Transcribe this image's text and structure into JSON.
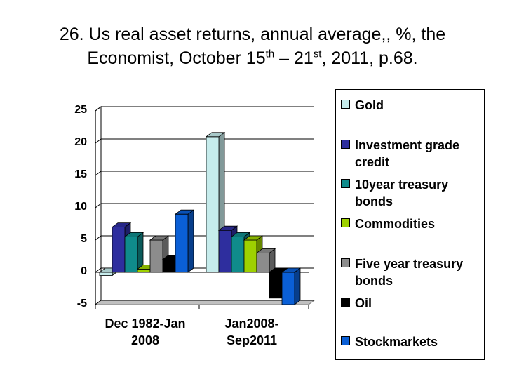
{
  "title": {
    "line1": "26. Us real asset returns, annual average,, %, the",
    "line2_a": "Economist, October 15",
    "line2_sup1": "th",
    "line2_b": " – 21",
    "line2_sup2": "st",
    "line2_c": ", 2011, p.68."
  },
  "chart_data": {
    "type": "bar",
    "categories": [
      "Dec 1982-Jan 2008",
      "Jan2008-Sep2011"
    ],
    "category_lines": [
      [
        "Dec 1982-Jan",
        "2008"
      ],
      [
        "Jan2008-",
        "Sep2011"
      ]
    ],
    "yticks": [
      "25",
      "20",
      "15",
      "10",
      "5",
      "0",
      "-5"
    ],
    "ylim": [
      -5,
      25
    ],
    "grid": true,
    "legend_position": "right",
    "series": [
      {
        "name": "Gold",
        "color": "#c6ecec",
        "values": [
          -0.5,
          21
        ]
      },
      {
        "name": "Investment grade credit",
        "color": "#2e2e9e",
        "values": [
          7,
          6.5
        ]
      },
      {
        "name": "10year treasury bonds",
        "color": "#0f8b8b",
        "values": [
          5.5,
          5.5
        ]
      },
      {
        "name": "Commodities",
        "color": "#9ed100",
        "values": [
          0.5,
          5
        ]
      },
      {
        "name": "Five year treasury bonds",
        "color": "#8c8c8c",
        "values": [
          5,
          3
        ]
      },
      {
        "name": "Oil",
        "color": "#000000",
        "values": [
          2,
          -4
        ]
      },
      {
        "name": "Stockmarkets",
        "color": "#0a5fd6",
        "values": [
          9,
          -5
        ]
      }
    ],
    "legend_lines": [
      [
        "Gold"
      ],
      [
        "Investment grade",
        "credit"
      ],
      [
        "10year treasury",
        "bonds"
      ],
      [
        "Commodities"
      ],
      [
        "Five year treasury",
        "bonds"
      ],
      [
        "Oil"
      ],
      [
        "Stockmarkets"
      ]
    ]
  }
}
